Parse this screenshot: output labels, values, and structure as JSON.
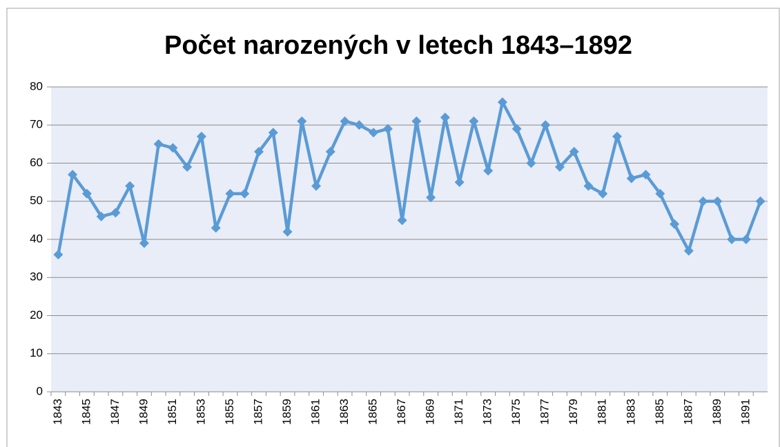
{
  "chart_data": {
    "type": "line",
    "title": "Počet narozených v letech 1843–1892",
    "categories": [
      "1843",
      null,
      "1845",
      null,
      "1847",
      null,
      "1849",
      null,
      "1851",
      null,
      "1853",
      null,
      "1855",
      null,
      "1857",
      null,
      "1859",
      null,
      "1861",
      null,
      "1863",
      null,
      "1865",
      null,
      "1867",
      null,
      "1869",
      null,
      "1871",
      null,
      "1873",
      null,
      "1875",
      null,
      "1877",
      null,
      "1879",
      null,
      "1881",
      null,
      "1883",
      null,
      "1885",
      null,
      "1887",
      null,
      "1889",
      null,
      "1891",
      null
    ],
    "series": [
      {
        "name": null,
        "color": "#5b9bd5",
        "values": [
          36,
          57,
          52,
          46,
          47,
          54,
          39,
          65,
          64,
          59,
          67,
          43,
          52,
          52,
          63,
          68,
          42,
          71,
          54,
          63,
          71,
          70,
          68,
          69,
          45,
          71,
          51,
          72,
          55,
          71,
          58,
          76,
          69,
          60,
          70,
          59,
          63,
          54,
          52,
          67,
          56,
          57,
          52,
          44,
          37,
          50,
          50,
          40,
          40,
          50
        ]
      }
    ],
    "ylim": [
      0,
      80
    ],
    "yticks": [
      0,
      10,
      20,
      30,
      40,
      50,
      60,
      70,
      80
    ],
    "grid": true
  }
}
